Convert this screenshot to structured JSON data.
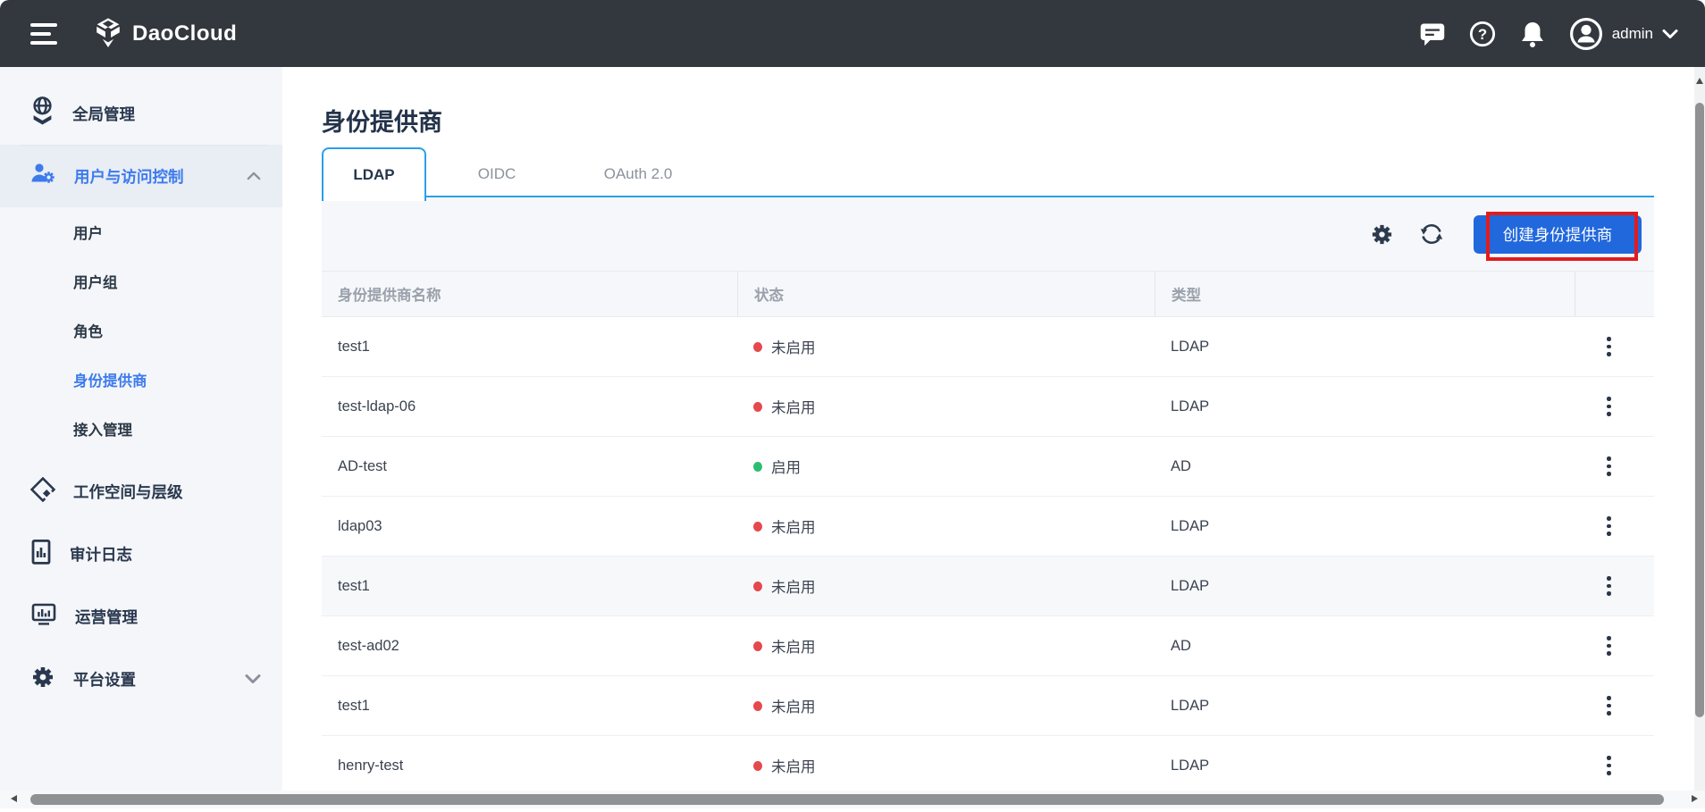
{
  "navbar": {
    "brand": "DaoCloud",
    "user_label": "admin",
    "icons": [
      "menu-icon",
      "daocloud-logo",
      "chat-icon",
      "help-icon",
      "bell-icon",
      "avatar",
      "chevron-down-icon"
    ]
  },
  "sidebar": {
    "items": [
      {
        "label": "全局管理",
        "icon": "globe-icon",
        "type": "top"
      },
      {
        "label": "用户与访问控制",
        "icon": "user-gear-icon",
        "type": "top",
        "active": true,
        "chevron": "up",
        "divider_above": true
      },
      {
        "label": "用户",
        "type": "sub"
      },
      {
        "label": "用户组",
        "type": "sub"
      },
      {
        "label": "角色",
        "type": "sub"
      },
      {
        "label": "身份提供商",
        "type": "sub",
        "active": true
      },
      {
        "label": "接入管理",
        "type": "sub"
      },
      {
        "label": "工作空间与层级",
        "icon": "hierarchy-icon",
        "type": "top",
        "gap_above": true
      },
      {
        "label": "审计日志",
        "icon": "audit-log-icon",
        "type": "top"
      },
      {
        "label": "运营管理",
        "icon": "operations-icon",
        "type": "top"
      },
      {
        "label": "平台设置",
        "icon": "settings-gear-icon",
        "type": "top",
        "chevron": "down"
      }
    ]
  },
  "page": {
    "title": "身份提供商",
    "tabs": [
      {
        "label": "LDAP",
        "active": true
      },
      {
        "label": "OIDC",
        "active": false
      },
      {
        "label": "OAuth 2.0",
        "active": false
      }
    ],
    "toolbar": {
      "icons": [
        "gear-icon",
        "refresh-icon"
      ],
      "create_button_label": "创建身份提供商"
    },
    "table": {
      "columns": [
        "身份提供商名称",
        "状态",
        "类型",
        ""
      ],
      "rows": [
        {
          "name": "test1",
          "status": "未启用",
          "status_color": "red",
          "type": "LDAP",
          "highlighted": false
        },
        {
          "name": "test-ldap-06",
          "status": "未启用",
          "status_color": "red",
          "type": "LDAP",
          "highlighted": false
        },
        {
          "name": "AD-test",
          "status": "启用",
          "status_color": "green",
          "type": "AD",
          "highlighted": false
        },
        {
          "name": "ldap03",
          "status": "未启用",
          "status_color": "red",
          "type": "LDAP",
          "highlighted": false
        },
        {
          "name": "test1",
          "status": "未启用",
          "status_color": "red",
          "type": "LDAP",
          "highlighted": true
        },
        {
          "name": "test-ad02",
          "status": "未启用",
          "status_color": "red",
          "type": "AD",
          "highlighted": false
        },
        {
          "name": "test1",
          "status": "未启用",
          "status_color": "red",
          "type": "LDAP",
          "highlighted": false
        },
        {
          "name": "henry-test",
          "status": "未启用",
          "status_color": "red",
          "type": "LDAP",
          "highlighted": false
        }
      ]
    },
    "annotation": {
      "shape": "rectangle",
      "color": "#e31b1b",
      "target": "create-identity-provider-button"
    }
  },
  "colors": {
    "navbar_bg": "#33373e",
    "sidebar_bg": "#f4f6f9",
    "accent_blue": "#3d7bec",
    "tab_blue": "#2b9fe8",
    "button_blue": "#2268dd",
    "annotation_red": "#e31b1b",
    "status_red": "#e5484d",
    "status_green": "#2cbe70"
  }
}
